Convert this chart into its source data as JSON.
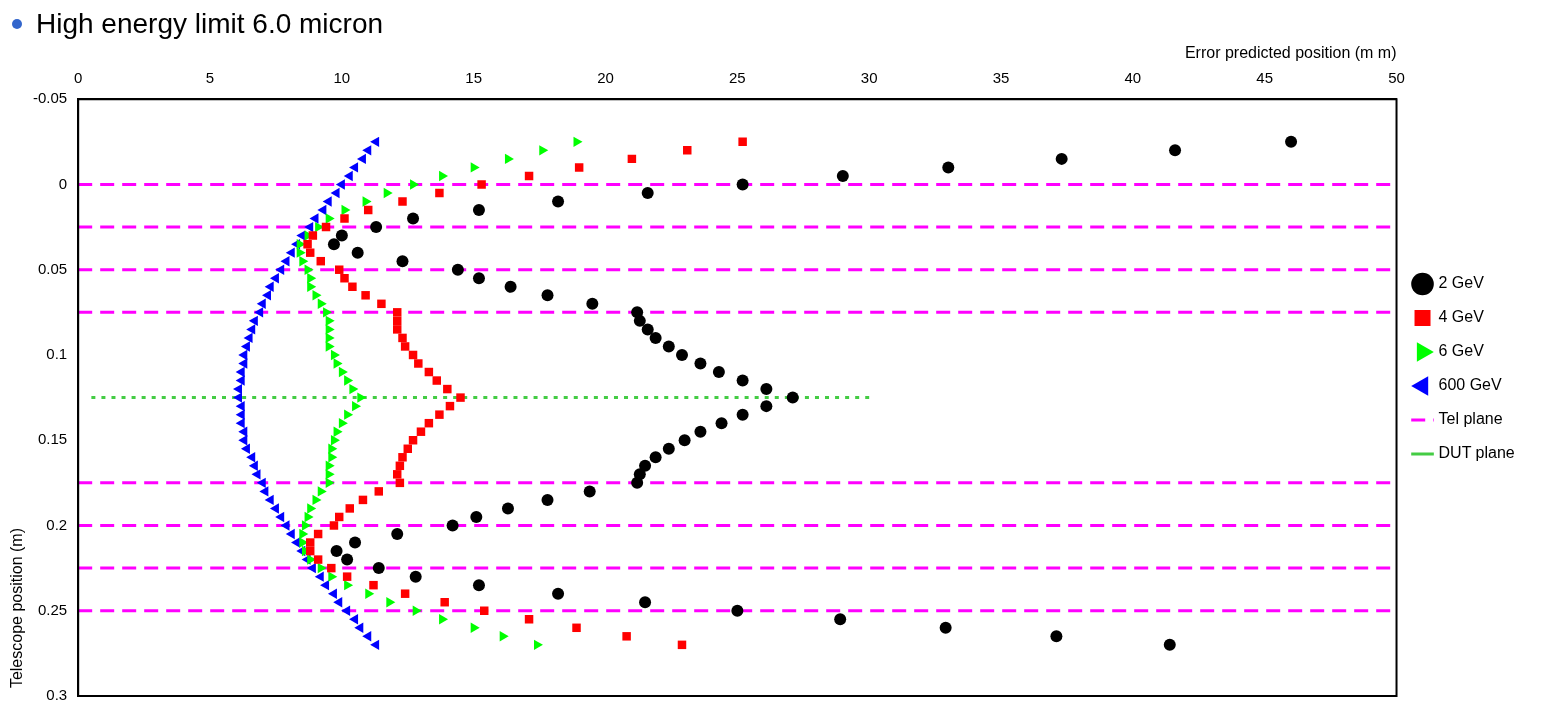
{
  "chart_data": {
    "type": "scatter",
    "title": "High energy limit 6.0 micron",
    "xlabel": "Error predicted position (m m)",
    "ylabel": "Telescope position (m)",
    "xlim": [
      0,
      50
    ],
    "xticks": [
      0,
      5,
      10,
      15,
      20,
      25,
      30,
      35,
      40,
      45,
      50
    ],
    "ylim": [
      0.3,
      -0.05
    ],
    "yticks": [
      -0.05,
      0,
      0.05,
      0.1,
      0.15,
      0.2,
      0.25,
      0.3
    ],
    "legend": "right",
    "ref_lines": [
      {
        "axis": "y",
        "value": 0,
        "label": "Tel plane",
        "color": "#ff00ff",
        "line_style": "dashed"
      },
      {
        "axis": "y",
        "value": 0.025,
        "color": "#ff00ff",
        "line_style": "dashed"
      },
      {
        "axis": "y",
        "value": 0.05,
        "color": "#ff00ff",
        "line_style": "dashed"
      },
      {
        "axis": "y",
        "value": 0.075,
        "color": "#ff00ff",
        "line_style": "dashed"
      },
      {
        "axis": "y",
        "value": 0.175,
        "color": "#ff00ff",
        "line_style": "dashed"
      },
      {
        "axis": "y",
        "value": 0.2,
        "color": "#ff00ff",
        "line_style": "dashed"
      },
      {
        "axis": "y",
        "value": 0.225,
        "color": "#ff00ff",
        "line_style": "dashed"
      },
      {
        "axis": "y",
        "value": 0.25,
        "color": "#ff00ff",
        "line_style": "dashed"
      }
    ],
    "series": [
      {
        "name": "2 GeV",
        "type": "scatter",
        "marker": "circle",
        "color": "#000000",
        "x": [
          46.0,
          41.6,
          37.3,
          33.0,
          29.0,
          25.2,
          21.6,
          18.2,
          15.2,
          12.7,
          11.3,
          10.0,
          9.7,
          10.6,
          12.3,
          14.4,
          15.2,
          16.4,
          17.8,
          19.5,
          21.2,
          21.3,
          21.6,
          21.9,
          22.4,
          22.9,
          23.6,
          24.3,
          25.2,
          26.1,
          27.1,
          26.1,
          25.2,
          24.4,
          23.6,
          23.0,
          22.4,
          21.9,
          21.5,
          21.3,
          21.2,
          19.4,
          17.8,
          16.3,
          15.1,
          14.2,
          12.1,
          10.5,
          9.8,
          10.2,
          11.4,
          12.8,
          15.2,
          18.2,
          21.5,
          25.0,
          28.9,
          32.9,
          37.1,
          41.4
        ],
        "values": [
          -0.025,
          -0.02,
          -0.015,
          -0.01,
          -0.005,
          0,
          0.005,
          0.01,
          0.015,
          0.02,
          0.025,
          0.03,
          0.035,
          0.04,
          0.045,
          0.05,
          0.055,
          0.06,
          0.065,
          0.07,
          0.075,
          0.08,
          0.085,
          0.09,
          0.095,
          0.1,
          0.105,
          0.11,
          0.115,
          0.12,
          0.125,
          0.13,
          0.135,
          0.14,
          0.145,
          0.15,
          0.155,
          0.16,
          0.165,
          0.17,
          0.175,
          0.18,
          0.185,
          0.19,
          0.195,
          0.2,
          0.205,
          0.21,
          0.215,
          0.22,
          0.225,
          0.23,
          0.235,
          0.24,
          0.245,
          0.25,
          0.255,
          0.26,
          0.265,
          0.27
        ]
      },
      {
        "name": "4 GeV",
        "type": "scatter",
        "marker": "square",
        "color": "#ff0000",
        "x": [
          25.2,
          23.1,
          21.0,
          19.0,
          17.1,
          15.3,
          13.7,
          12.3,
          11.0,
          10.1,
          9.4,
          8.9,
          8.7,
          8.8,
          9.2,
          9.9,
          10.1,
          10.4,
          10.9,
          11.5,
          12.1,
          12.1,
          12.1,
          12.3,
          12.4,
          12.7,
          12.9,
          13.3,
          13.6,
          14.0,
          14.5,
          14.1,
          13.7,
          13.3,
          13.0,
          12.7,
          12.5,
          12.3,
          12.2,
          12.1,
          12.2,
          11.4,
          10.8,
          10.3,
          9.9,
          9.7,
          9.1,
          8.8,
          8.8,
          9.1,
          9.6,
          10.2,
          11.2,
          12.4,
          13.9,
          15.4,
          17.1,
          18.9,
          20.8,
          22.9
        ],
        "values": [
          -0.025,
          -0.02,
          -0.015,
          -0.01,
          -0.005,
          0,
          0.005,
          0.01,
          0.015,
          0.02,
          0.025,
          0.03,
          0.035,
          0.04,
          0.045,
          0.05,
          0.055,
          0.06,
          0.065,
          0.07,
          0.075,
          0.08,
          0.085,
          0.09,
          0.095,
          0.1,
          0.105,
          0.11,
          0.115,
          0.12,
          0.125,
          0.13,
          0.135,
          0.14,
          0.145,
          0.15,
          0.155,
          0.16,
          0.165,
          0.17,
          0.175,
          0.18,
          0.185,
          0.19,
          0.195,
          0.2,
          0.205,
          0.21,
          0.215,
          0.22,
          0.225,
          0.23,
          0.235,
          0.24,
          0.245,
          0.25,
          0.255,
          0.26,
          0.265,
          0.27
        ]
      },
      {
        "name": "6 GeV",
        "type": "scatter",
        "marker": "triangle",
        "color": "#00ff00",
        "x": [
          18.9,
          17.6,
          16.3,
          15.0,
          13.8,
          12.7,
          11.7,
          10.9,
          10.1,
          9.5,
          9.1,
          8.7,
          8.4,
          8.4,
          8.5,
          8.7,
          8.8,
          8.8,
          9.0,
          9.2,
          9.4,
          9.5,
          9.5,
          9.5,
          9.5,
          9.7,
          9.8,
          10.0,
          10.2,
          10.4,
          10.7,
          10.5,
          10.2,
          10.0,
          9.8,
          9.7,
          9.6,
          9.6,
          9.5,
          9.5,
          9.5,
          9.2,
          9.0,
          8.8,
          8.7,
          8.6,
          8.5,
          8.5,
          8.6,
          8.8,
          9.2,
          9.6,
          10.2,
          11.0,
          11.8,
          12.8,
          13.8,
          15.0,
          16.1,
          17.4
        ],
        "values": [
          -0.025,
          -0.02,
          -0.015,
          -0.01,
          -0.005,
          0,
          0.005,
          0.01,
          0.015,
          0.02,
          0.025,
          0.03,
          0.035,
          0.04,
          0.045,
          0.05,
          0.055,
          0.06,
          0.065,
          0.07,
          0.075,
          0.08,
          0.085,
          0.09,
          0.095,
          0.1,
          0.105,
          0.11,
          0.115,
          0.12,
          0.125,
          0.13,
          0.135,
          0.14,
          0.145,
          0.15,
          0.155,
          0.16,
          0.165,
          0.17,
          0.175,
          0.18,
          0.185,
          0.19,
          0.195,
          0.2,
          0.205,
          0.21,
          0.215,
          0.22,
          0.225,
          0.23,
          0.235,
          0.24,
          0.245,
          0.25,
          0.255,
          0.26,
          0.265,
          0.27
        ]
      },
      {
        "name": "600 GeV",
        "type": "scatter",
        "marker": "triangle",
        "color": "#0000ff",
        "x": [
          11.3,
          11.0,
          10.8,
          10.5,
          10.3,
          10.0,
          9.8,
          9.5,
          9.3,
          9.0,
          8.8,
          8.5,
          8.3,
          8.1,
          7.9,
          7.7,
          7.5,
          7.3,
          7.2,
          7.0,
          6.9,
          6.7,
          6.6,
          6.5,
          6.4,
          6.3,
          6.3,
          6.2,
          6.2,
          6.1,
          6.1,
          6.2,
          6.2,
          6.2,
          6.3,
          6.3,
          6.4,
          6.6,
          6.7,
          6.8,
          7.0,
          7.1,
          7.3,
          7.5,
          7.7,
          7.9,
          8.1,
          8.3,
          8.5,
          8.7,
          8.9,
          9.2,
          9.4,
          9.7,
          9.9,
          10.2,
          10.5,
          10.7,
          11.0,
          11.3
        ],
        "values": [
          -0.025,
          -0.02,
          -0.015,
          -0.01,
          -0.005,
          0,
          0.005,
          0.01,
          0.015,
          0.02,
          0.025,
          0.03,
          0.035,
          0.04,
          0.045,
          0.05,
          0.055,
          0.06,
          0.065,
          0.07,
          0.075,
          0.08,
          0.085,
          0.09,
          0.095,
          0.1,
          0.105,
          0.11,
          0.115,
          0.12,
          0.125,
          0.13,
          0.135,
          0.14,
          0.145,
          0.15,
          0.155,
          0.16,
          0.165,
          0.17,
          0.175,
          0.18,
          0.185,
          0.19,
          0.195,
          0.2,
          0.205,
          0.21,
          0.215,
          0.22,
          0.225,
          0.23,
          0.235,
          0.24,
          0.245,
          0.25,
          0.255,
          0.26,
          0.265,
          0.27
        ]
      },
      {
        "name": "DUT plane",
        "type": "line",
        "line_style": "dotted",
        "color": "#44cc44",
        "x": [
          0.5,
          30
        ],
        "values": [
          0.125,
          0.125
        ]
      }
    ]
  }
}
